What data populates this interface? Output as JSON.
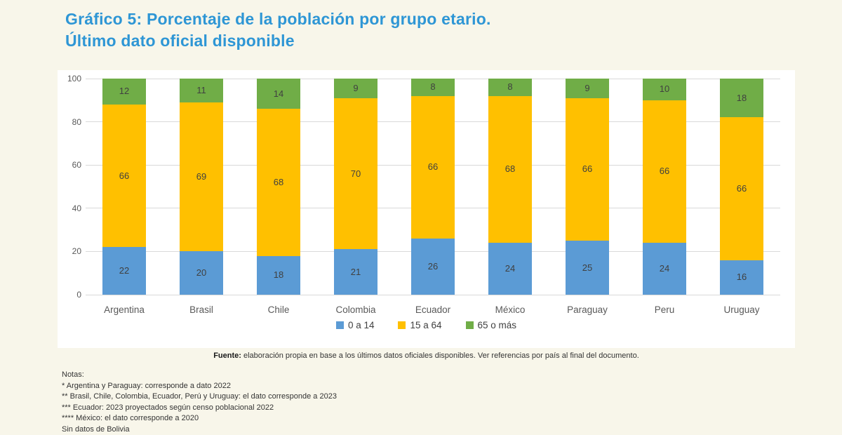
{
  "page": {
    "background_color": "#F8F6EA",
    "panel_color": "#FFFFFF",
    "title_color": "#2E96D5"
  },
  "title": {
    "line1": "Gráfico 5: Porcentaje de la población por grupo etario.",
    "line2": "Último dato oficial disponible"
  },
  "chart_data": {
    "type": "bar",
    "stacked": true,
    "title": "Gráfico 5: Porcentaje de la población por grupo etario. Último dato oficial disponible",
    "categories": [
      "Argentina",
      "Brasil",
      "Chile",
      "Colombia",
      "Ecuador",
      "México",
      "Paraguay",
      "Peru",
      "Uruguay"
    ],
    "series": [
      {
        "name": "0 a 14",
        "color": "#5B9BD5",
        "values": [
          22,
          20,
          18,
          21,
          26,
          24,
          25,
          24,
          16
        ]
      },
      {
        "name": "15 a 64",
        "color": "#FFC000",
        "values": [
          66,
          69,
          68,
          70,
          66,
          68,
          66,
          66,
          66
        ]
      },
      {
        "name": "65 o más",
        "color": "#70AD47",
        "values": [
          12,
          11,
          14,
          9,
          8,
          8,
          9,
          10,
          18
        ]
      }
    ],
    "xlabel": "",
    "ylabel": "",
    "ylim": [
      0,
      100
    ],
    "y_ticks": [
      0,
      20,
      40,
      60,
      80,
      100
    ],
    "grid": true,
    "gridline_color": "#D9D9D9",
    "data_labels": true,
    "legend_position": "bottom"
  },
  "source": {
    "label": "Fuente:",
    "text": " elaboración propia en base a los últimos datos oficiales disponibles. Ver referencias por país  al final del documento."
  },
  "notes": {
    "heading": "Notas:",
    "lines": [
      "* Argentina y Paraguay: corresponde a dato 2022",
      "** Brasil, Chile, Colombia,  Ecuador, Perú y Uruguay: el dato corresponde a 2023",
      "*** Ecuador: 2023 proyectados según censo poblacional 2022",
      "**** México: el dato corresponde a 2020",
      "Sin datos de Bolivia"
    ]
  }
}
